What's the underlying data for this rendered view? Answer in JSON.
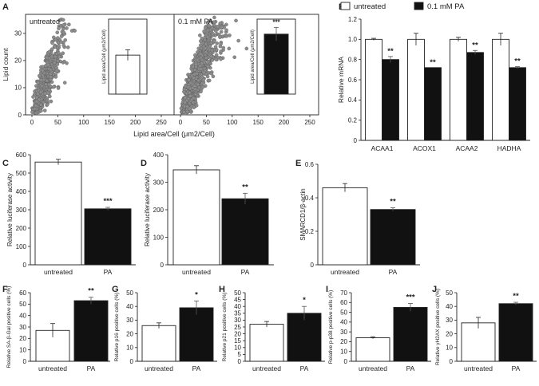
{
  "panel_letters": [
    "A",
    "B",
    "C",
    "D",
    "E",
    "F",
    "G",
    "H",
    "I",
    "J"
  ],
  "groups": [
    "untreated",
    "PA"
  ],
  "colors": {
    "untreated": "#ffffff",
    "treated": "#111111",
    "scatter_point": "#8c8c8c",
    "axis": "#222222"
  },
  "chart_data": [
    {
      "panel": "A",
      "type": "scatter",
      "xlabel": "Lipid area/Cell (μm2/Cell)",
      "ylabel": "Lipid count",
      "xlim": [
        0,
        250
      ],
      "ylim": [
        0,
        37
      ],
      "xticks": [
        0,
        50,
        100,
        150,
        200,
        250
      ],
      "yticks": [
        0,
        10,
        20,
        30
      ],
      "subplots": [
        {
          "label": "untreated",
          "inset": {
            "type": "bar",
            "ylabel": "Lipid area/Cell (μm2/Cell)",
            "value": 52,
            "err": 7,
            "ylim": [
              0,
              100
            ],
            "sig": "",
            "color": "white"
          }
        },
        {
          "label": "0.1 mM PA",
          "inset": {
            "type": "bar",
            "ylabel": "Lipid area/Cell (μm2/Cell)",
            "value": 80,
            "err": 9,
            "ylim": [
              0,
              100
            ],
            "sig": "***",
            "color": "black"
          }
        }
      ]
    },
    {
      "panel": "B",
      "type": "bar",
      "ylabel": "Relative mRNA",
      "categories": [
        "ACAA1",
        "ACOX1",
        "ACAA2",
        "HADHA"
      ],
      "ylim": [
        0,
        1.2
      ],
      "yticks": [
        0,
        0.2,
        0.4,
        0.6,
        0.8,
        1.0,
        1.2
      ],
      "ytick_labels": [
        "0",
        "0.2",
        "0.4",
        "0.6",
        "0.8",
        "1.0",
        "1.2"
      ],
      "series": [
        {
          "name": "untreated",
          "values": [
            1.0,
            1.0,
            1.0,
            1.0
          ],
          "err": [
            0.01,
            0.06,
            0.02,
            0.06
          ]
        },
        {
          "name": "0.1 mM PA",
          "values": [
            0.8,
            0.72,
            0.87,
            0.72
          ],
          "err": [
            0.03,
            0.0,
            0.02,
            0.01
          ]
        }
      ],
      "sig": [
        "**",
        "**",
        "**",
        "**"
      ],
      "legend_position": "top"
    },
    {
      "panel": "C",
      "type": "bar",
      "ylabel": "Relative luciferase activity",
      "categories": [
        "untreated",
        "PA"
      ],
      "values": [
        560,
        305
      ],
      "err": [
        15,
        8
      ],
      "ylim": [
        0,
        600
      ],
      "yticks": [
        0,
        100,
        200,
        300,
        400,
        500,
        600
      ],
      "sig": "***"
    },
    {
      "panel": "D",
      "type": "bar",
      "ylabel": "Relative luciferase activity",
      "categories": [
        "untreated",
        "PA"
      ],
      "values": [
        345,
        240
      ],
      "err": [
        15,
        20
      ],
      "ylim": [
        0,
        400
      ],
      "yticks": [
        0,
        100,
        200,
        300,
        400
      ],
      "sig": "**"
    },
    {
      "panel": "E",
      "type": "bar",
      "ylabel": "SMARCD1/β-actin",
      "categories": [
        "untreated",
        "PA"
      ],
      "values": [
        0.46,
        0.33
      ],
      "err": [
        0.025,
        0.01
      ],
      "ylim": [
        0,
        0.6
      ],
      "yticks": [
        0,
        0.2,
        0.4,
        0.6
      ],
      "ytick_labels": [
        "0",
        "0.2",
        "0.4",
        "0.6"
      ],
      "sig": "**"
    },
    {
      "panel": "F",
      "type": "bar",
      "ylabel": "Relative SA-β-Gal positive cells (%)",
      "categories": [
        "untreated",
        "PA"
      ],
      "values": [
        27,
        53
      ],
      "err": [
        6,
        3
      ],
      "ylim": [
        0,
        60
      ],
      "yticks": [
        0,
        10,
        20,
        30,
        40,
        50,
        60
      ],
      "sig": "**"
    },
    {
      "panel": "G",
      "type": "bar",
      "ylabel": "Relative p16 positive cells (%)",
      "categories": [
        "untreated",
        "PA"
      ],
      "values": [
        26,
        39
      ],
      "err": [
        2,
        5
      ],
      "ylim": [
        0,
        50
      ],
      "yticks": [
        0,
        10,
        20,
        30,
        40,
        50
      ],
      "sig": "*"
    },
    {
      "panel": "H",
      "type": "bar",
      "ylabel": "Relative p21 positive cells (%)",
      "categories": [
        "untreated",
        "PA"
      ],
      "values": [
        27,
        35
      ],
      "err": [
        2,
        5
      ],
      "ylim": [
        0,
        50
      ],
      "yticks": [
        0,
        5,
        10,
        15,
        20,
        25,
        30,
        35,
        40,
        45,
        50
      ],
      "sig": "*"
    },
    {
      "panel": "I",
      "type": "bar",
      "ylabel": "Relative p-p38 positive cells (%)",
      "categories": [
        "untreated",
        "PA"
      ],
      "values": [
        24,
        55
      ],
      "err": [
        1,
        4
      ],
      "ylim": [
        0,
        70
      ],
      "yticks": [
        0,
        10,
        20,
        30,
        40,
        50,
        60,
        70
      ],
      "sig": "***"
    },
    {
      "panel": "J",
      "type": "bar",
      "ylabel": "Relative γH2AX positive cells (%)",
      "categories": [
        "untreated",
        "PA"
      ],
      "values": [
        28,
        42
      ],
      "err": [
        4,
        1
      ],
      "ylim": [
        0,
        50
      ],
      "yticks": [
        0,
        10,
        20,
        30,
        40,
        50
      ],
      "sig": "**"
    }
  ]
}
